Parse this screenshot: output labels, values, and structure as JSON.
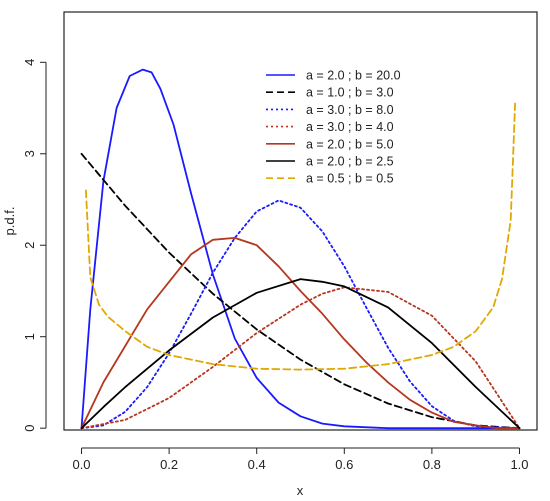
{
  "chart_data": {
    "type": "line",
    "title": "",
    "xlabel": "x",
    "ylabel": "p.d.f.",
    "xlim": [
      -0.04,
      1.04
    ],
    "ylim": [
      -0.02,
      4.55
    ],
    "xticks": [
      0.0,
      0.2,
      0.4,
      0.6,
      0.8,
      1.0
    ],
    "xtick_labels": [
      "0.0",
      "0.2",
      "0.4",
      "0.6",
      "0.8",
      "1.0"
    ],
    "yticks": [
      0,
      1,
      2,
      3,
      4
    ],
    "ytick_labels": [
      "0",
      "1",
      "2",
      "3",
      "4"
    ],
    "grid": false,
    "legend_position": "top-right",
    "series": [
      {
        "name": "a = 2.0 ; b = 20.0",
        "a": 2.0,
        "b": 20.0,
        "color": "#1a1aff",
        "style": "solid",
        "x": [
          0.0,
          0.02,
          0.05,
          0.08,
          0.11,
          0.14,
          0.16,
          0.18,
          0.21,
          0.25,
          0.3,
          0.35,
          0.4,
          0.45,
          0.5,
          0.55,
          0.6,
          0.7,
          0.8,
          0.9,
          1.0
        ],
        "y": [
          0.0,
          1.3,
          2.7,
          3.5,
          3.85,
          3.92,
          3.89,
          3.71,
          3.32,
          2.57,
          1.68,
          0.98,
          0.55,
          0.28,
          0.13,
          0.05,
          0.02,
          0.0,
          0.0,
          0.0,
          0.0
        ]
      },
      {
        "name": "a = 1.0 ; b = 3.0",
        "a": 1.0,
        "b": 3.0,
        "color": "#000000",
        "style": "dashed",
        "x": [
          0.0,
          0.1,
          0.2,
          0.3,
          0.4,
          0.5,
          0.6,
          0.7,
          0.8,
          0.9,
          1.0
        ],
        "y": [
          3.0,
          2.43,
          1.92,
          1.47,
          1.08,
          0.75,
          0.48,
          0.27,
          0.12,
          0.03,
          0.0
        ]
      },
      {
        "name": "a = 3.0 ; b = 8.0",
        "a": 3.0,
        "b": 8.0,
        "color": "#1a1aff",
        "style": "dotted",
        "x": [
          0.0,
          0.05,
          0.1,
          0.15,
          0.2,
          0.25,
          0.3,
          0.35,
          0.4,
          0.45,
          0.5,
          0.55,
          0.6,
          0.65,
          0.7,
          0.75,
          0.8,
          0.85,
          0.9,
          1.0
        ],
        "y": [
          0.0,
          0.03,
          0.18,
          0.45,
          0.82,
          1.25,
          1.7,
          2.08,
          2.37,
          2.49,
          2.41,
          2.15,
          1.77,
          1.32,
          0.88,
          0.51,
          0.24,
          0.08,
          0.02,
          0.0
        ]
      },
      {
        "name": "a = 3.0 ; b = 4.0",
        "a": 3.0,
        "b": 4.0,
        "color": "#b5371f",
        "style": "dotted",
        "x": [
          0.0,
          0.1,
          0.2,
          0.3,
          0.4,
          0.5,
          0.55,
          0.6,
          0.7,
          0.8,
          0.9,
          1.0
        ],
        "y": [
          0.0,
          0.09,
          0.33,
          0.67,
          1.04,
          1.35,
          1.47,
          1.54,
          1.49,
          1.23,
          0.73,
          0.0
        ]
      },
      {
        "name": "a = 2.0 ; b = 5.0",
        "a": 2.0,
        "b": 5.0,
        "color": "#b5371f",
        "style": "solid",
        "x": [
          0.0,
          0.05,
          0.1,
          0.15,
          0.2,
          0.25,
          0.3,
          0.35,
          0.4,
          0.45,
          0.5,
          0.55,
          0.6,
          0.65,
          0.7,
          0.75,
          0.8,
          0.85,
          0.9,
          0.95,
          1.0
        ],
        "y": [
          0.0,
          0.5,
          0.9,
          1.3,
          1.6,
          1.9,
          2.06,
          2.08,
          2.0,
          1.77,
          1.5,
          1.25,
          0.97,
          0.72,
          0.5,
          0.31,
          0.17,
          0.07,
          0.03,
          0.0,
          0.0
        ]
      },
      {
        "name": "a = 2.0 ; b = 2.5",
        "a": 2.0,
        "b": 2.5,
        "color": "#000000",
        "style": "solid",
        "x": [
          0.0,
          0.05,
          0.1,
          0.2,
          0.3,
          0.4,
          0.5,
          0.55,
          0.6,
          0.7,
          0.8,
          0.9,
          1.0
        ],
        "y": [
          0.0,
          0.23,
          0.45,
          0.85,
          1.21,
          1.48,
          1.63,
          1.6,
          1.55,
          1.32,
          0.93,
          0.45,
          0.0
        ]
      },
      {
        "name": "a = 0.5 ; b = 0.5",
        "a": 0.5,
        "b": 0.5,
        "color": "#e0a800",
        "style": "dashed",
        "x": [
          0.01,
          0.02,
          0.04,
          0.06,
          0.1,
          0.15,
          0.2,
          0.3,
          0.4,
          0.5,
          0.6,
          0.7,
          0.8,
          0.85,
          0.9,
          0.94,
          0.96,
          0.98,
          0.99
        ],
        "y": [
          2.6,
          1.65,
          1.35,
          1.22,
          1.06,
          0.89,
          0.8,
          0.7,
          0.65,
          0.64,
          0.65,
          0.7,
          0.8,
          0.89,
          1.06,
          1.32,
          1.63,
          2.27,
          3.55
        ]
      }
    ]
  }
}
